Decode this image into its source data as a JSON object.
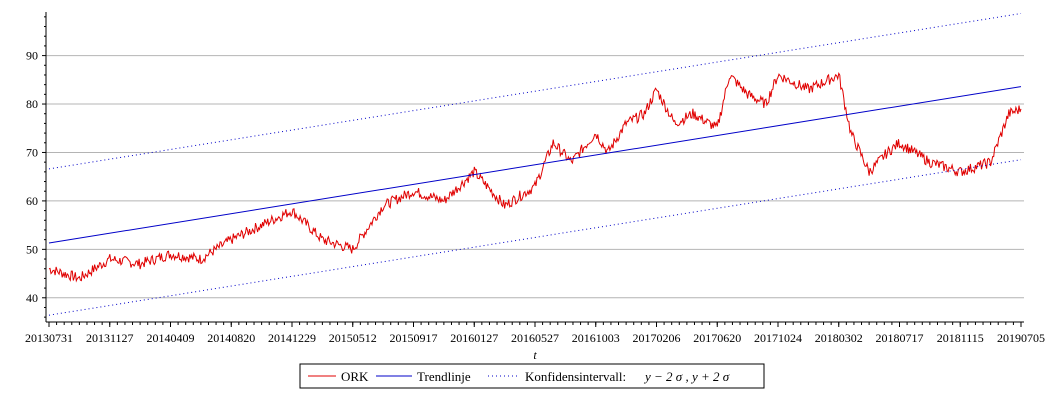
{
  "chart_data": {
    "type": "line",
    "title": "",
    "xlabel": "t",
    "ylabel": "",
    "ylim": [
      35,
      99
    ],
    "yticks": [
      40,
      50,
      60,
      70,
      80,
      90
    ],
    "x_tick_labels": [
      "20130731",
      "20131127",
      "20140409",
      "20140820",
      "20141229",
      "20150512",
      "20150917",
      "20160127",
      "20160527",
      "20161003",
      "20170206",
      "20170620",
      "20171024",
      "20180302",
      "20180717",
      "20181115",
      "20190705"
    ],
    "grid": "horizontal",
    "legend": {
      "placement": "bottom",
      "entries": [
        {
          "label": "ORK",
          "color": "#e00000",
          "style": "solid"
        },
        {
          "label": "Trendlinje",
          "color": "#0000c8",
          "style": "solid"
        },
        {
          "label": "Konfidensintervall:",
          "formula": "y − 2 σ , y + 2 σ",
          "color": "#0000c8",
          "style": "dotted"
        }
      ]
    },
    "series": [
      {
        "name": "ORK",
        "color": "#e00000",
        "x_index": [
          0,
          0.5,
          1,
          1.5,
          2,
          2.5,
          3,
          3.5,
          4,
          4.5,
          5,
          5.5,
          6,
          6.5,
          7,
          7.5,
          8,
          8.3,
          8.6,
          9,
          9.2,
          9.5,
          9.8,
          10,
          10.3,
          10.6,
          11,
          11.2,
          11.5,
          11.8,
          12,
          12.5,
          13,
          13.2,
          13.5,
          13.8,
          14,
          14.5,
          15,
          15.5,
          15.8,
          16
        ],
        "values": [
          46,
          44,
          48,
          47,
          49,
          48,
          52,
          55,
          58,
          52,
          50,
          59,
          62,
          60,
          66,
          59,
          63,
          72,
          68,
          74,
          70,
          76,
          78,
          83,
          76,
          78,
          75,
          86,
          82,
          80,
          86,
          83,
          86,
          74,
          66,
          70,
          72,
          68,
          66,
          68,
          78,
          79
        ]
      },
      {
        "name": "Trendlinje",
        "color": "#0000c8",
        "x_index": [
          0,
          16
        ],
        "values": [
          51.3,
          83.6
        ]
      },
      {
        "name": "Konfidensintervall upper",
        "color": "#0000c8",
        "x_index": [
          0,
          16
        ],
        "values": [
          66.6,
          98.7
        ]
      },
      {
        "name": "Konfidensintervall lower",
        "color": "#0000c8",
        "x_index": [
          0,
          16
        ],
        "values": [
          36.4,
          68.5
        ]
      }
    ]
  }
}
